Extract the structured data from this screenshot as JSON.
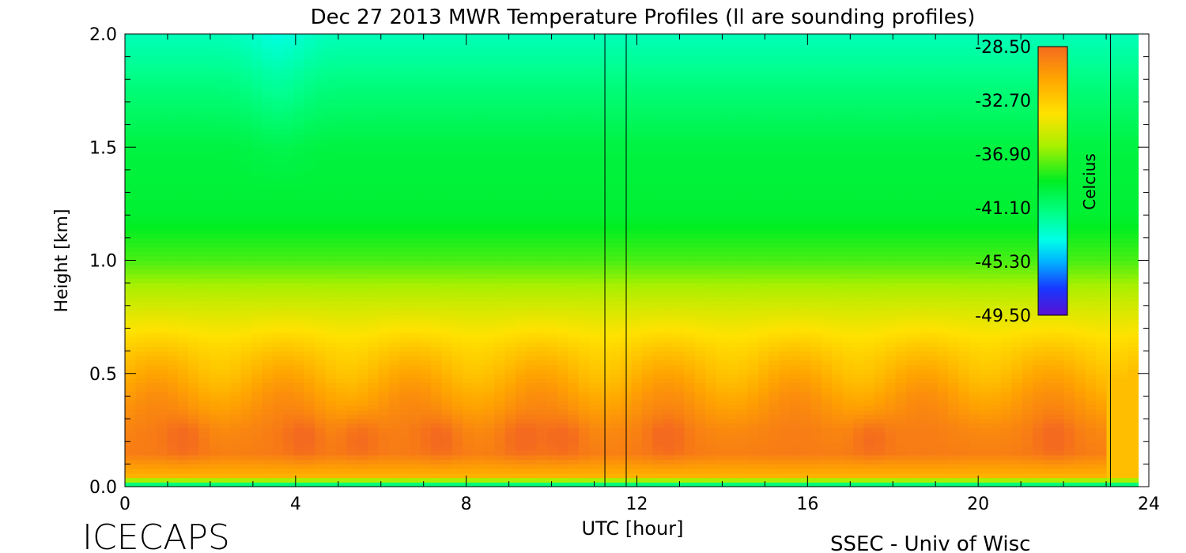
{
  "chart_data": {
    "type": "heatmap",
    "title": "Dec 27 2013 MWR Temperature Profiles (ll are sounding profiles)",
    "xlabel": "UTC [hour]",
    "ylabel": "Height [km]",
    "xlim": [
      0,
      24
    ],
    "ylim": [
      0.0,
      2.0
    ],
    "x_ticks": [
      "0",
      "4",
      "8",
      "12",
      "16",
      "20",
      "24"
    ],
    "y_ticks": [
      "0.0",
      "0.5",
      "1.0",
      "1.5",
      "2.0"
    ],
    "colorbar": {
      "label": "Celcius",
      "ticks": [
        "-28.50",
        "-32.70",
        "-36.90",
        "-41.10",
        "-45.30",
        "-49.50"
      ],
      "range": [
        -49.5,
        -28.5
      ]
    },
    "sounding_times_utc": [
      11.25,
      11.75,
      23.1
    ],
    "profile": {
      "height_km": [
        0.0,
        0.05,
        0.15,
        0.25,
        0.4,
        0.5,
        0.6,
        0.8,
        1.0,
        1.2,
        1.5,
        1.8,
        2.0
      ],
      "temperature_c": [
        -40.5,
        -31.0,
        -29.2,
        -29.4,
        -30.3,
        -31.1,
        -31.9,
        -33.8,
        -36.0,
        -37.2,
        -37.5,
        -38.8,
        -40.0
      ]
    },
    "warm_core_times_utc": [
      1.4,
      4.2,
      5.5,
      7.4,
      9.3,
      10.3,
      12.7,
      17.5,
      21.8
    ]
  },
  "footer": {
    "left": "ICECAPS",
    "right": "SSEC - Univ of Wisc"
  }
}
